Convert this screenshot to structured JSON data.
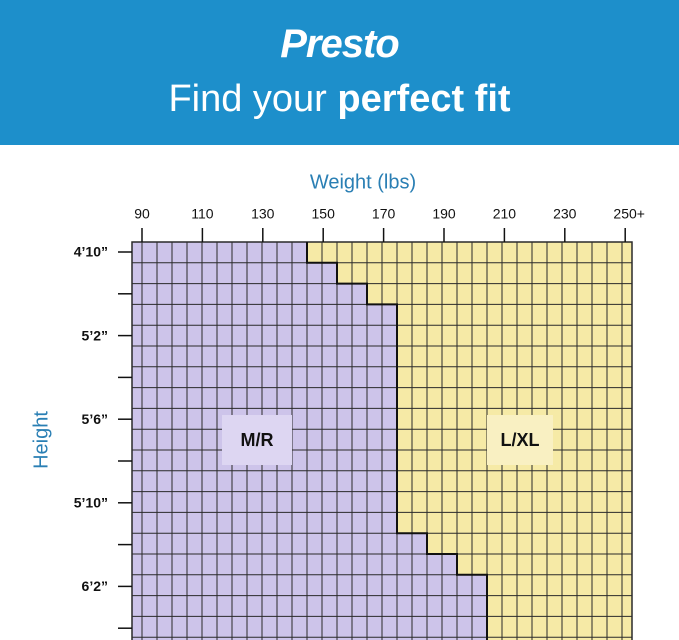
{
  "header": {
    "brand": "Presto",
    "tagline_start": "Find your",
    "tagline_bold": "perfect fit"
  },
  "x_axis": {
    "title": "Weight (lbs)",
    "ticks": [
      "90",
      "110",
      "130",
      "150",
      "170",
      "190",
      "210",
      "230",
      "250+"
    ]
  },
  "y_axis": {
    "title": "Height",
    "ticks": [
      "4’10”",
      "5’2”",
      "5’6”",
      "5’10”",
      "6’2”"
    ]
  },
  "regions": {
    "small": "M/R",
    "large": "L/XL"
  }
}
